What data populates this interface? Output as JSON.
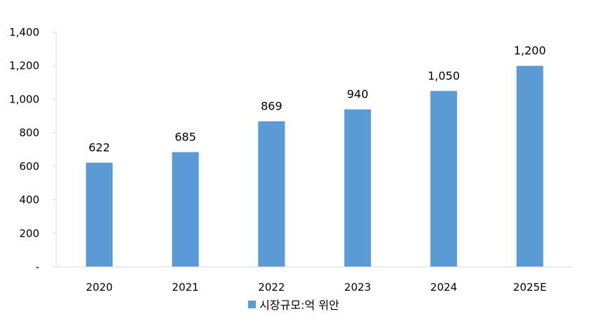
{
  "chart_data": {
    "type": "bar",
    "categories": [
      "2020",
      "2021",
      "2022",
      "2023",
      "2024",
      "2025E"
    ],
    "series": [
      {
        "name": "시장규모:억 위안",
        "values": [
          622,
          685,
          869,
          940,
          1050,
          1200
        ]
      }
    ],
    "data_labels": [
      "622",
      "685",
      "869",
      "940",
      "1,050",
      "1,200"
    ],
    "y_ticks": [
      {
        "value": 0,
        "label": "-"
      },
      {
        "value": 200,
        "label": "200"
      },
      {
        "value": 400,
        "label": "400"
      },
      {
        "value": 600,
        "label": "600"
      },
      {
        "value": 800,
        "label": "800"
      },
      {
        "value": 1000,
        "label": "1,000"
      },
      {
        "value": 1200,
        "label": "1,200"
      },
      {
        "value": 1400,
        "label": "1,400"
      }
    ],
    "ylim": [
      0,
      1400
    ],
    "grid": false,
    "legend_position": "bottom-center",
    "bar_color": "#5B9BD5",
    "axis_color": "#D9D9D9"
  }
}
